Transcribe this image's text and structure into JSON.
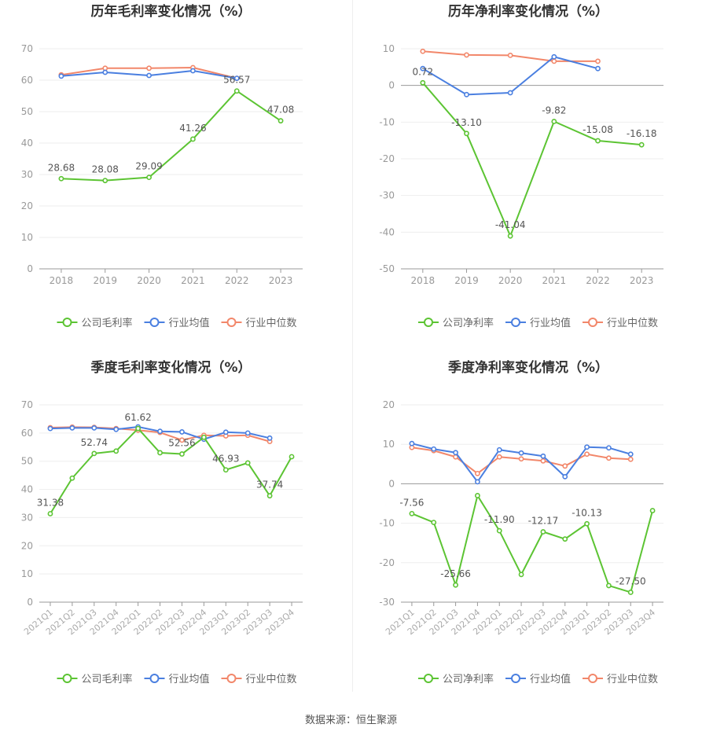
{
  "colors": {
    "company": "#5cc433",
    "avg": "#4a7fe0",
    "median": "#f2876a",
    "grid": "#eeeeee",
    "axis": "#999999",
    "text": "#666666",
    "title": "#333333"
  },
  "footer": "数据来源：恒生聚源",
  "chart_data": [
    {
      "type": "line",
      "title": "历年毛利率变化情况（%）",
      "categories": [
        "2018",
        "2019",
        "2020",
        "2021",
        "2022",
        "2023"
      ],
      "ylim": [
        0,
        70
      ],
      "yticks": [
        0,
        10,
        20,
        30,
        40,
        50,
        60,
        70
      ],
      "series": [
        {
          "name": "公司毛利率",
          "role": "company",
          "values": [
            28.68,
            28.08,
            29.09,
            41.26,
            56.57,
            47.08
          ],
          "labels": [
            "28.68",
            "28.08",
            "29.09",
            "41.26",
            "56.57",
            "47.08"
          ]
        },
        {
          "name": "行业均值",
          "role": "avg",
          "values": [
            61.3,
            62.5,
            61.5,
            63.0,
            60.6,
            null
          ]
        },
        {
          "name": "行业中位数",
          "role": "median",
          "values": [
            61.7,
            63.8,
            63.8,
            64.0,
            60.6,
            null
          ]
        }
      ]
    },
    {
      "type": "line",
      "title": "历年净利率变化情况（%）",
      "categories": [
        "2018",
        "2019",
        "2020",
        "2021",
        "2022",
        "2023"
      ],
      "ylim": [
        -50,
        10
      ],
      "yticks": [
        -50,
        -40,
        -30,
        -20,
        -10,
        0,
        10
      ],
      "series": [
        {
          "name": "公司净利率",
          "role": "company",
          "values": [
            0.72,
            -13.1,
            -41.04,
            -9.82,
            -15.08,
            -16.18
          ],
          "labels": [
            "0.72",
            "-13.10",
            "-41.04",
            "-9.82",
            "-15.08",
            "-16.18"
          ]
        },
        {
          "name": "行业均值",
          "role": "avg",
          "values": [
            4.6,
            -2.5,
            -2.0,
            7.8,
            4.6,
            null
          ]
        },
        {
          "name": "行业中位数",
          "role": "median",
          "values": [
            9.3,
            8.3,
            8.2,
            6.6,
            6.6,
            null
          ]
        }
      ]
    },
    {
      "type": "line",
      "title": "季度毛利率变化情况（%）",
      "categories": [
        "2021Q1",
        "2021Q2",
        "2021Q3",
        "2021Q4",
        "2022Q1",
        "2022Q2",
        "2022Q3",
        "2022Q4",
        "2023Q1",
        "2023Q2",
        "2023Q3",
        "2023Q4"
      ],
      "ylim": [
        0,
        70
      ],
      "yticks": [
        0,
        10,
        20,
        30,
        40,
        50,
        60,
        70
      ],
      "series": [
        {
          "name": "公司毛利率",
          "role": "company",
          "values": [
            31.38,
            44.0,
            52.74,
            53.6,
            61.62,
            53.0,
            52.56,
            58.5,
            46.93,
            49.4,
            37.74,
            51.6
          ],
          "labels": [
            "31.38",
            "",
            "52.74",
            "",
            "61.62",
            "",
            "52.56",
            "",
            "46.93",
            "",
            "37.74",
            ""
          ]
        },
        {
          "name": "行业均值",
          "role": "avg",
          "values": [
            61.6,
            61.8,
            61.8,
            61.3,
            62.2,
            60.6,
            60.4,
            57.8,
            60.3,
            60.0,
            58.2,
            null
          ]
        },
        {
          "name": "行业中位数",
          "role": "median",
          "values": [
            61.9,
            62.1,
            62.0,
            61.6,
            61.0,
            60.2,
            57.5,
            59.2,
            59.0,
            59.2,
            57.0,
            null
          ]
        }
      ]
    },
    {
      "type": "line",
      "title": "季度净利率变化情况（%）",
      "categories": [
        "2021Q1",
        "2021Q2",
        "2021Q3",
        "2021Q4",
        "2022Q1",
        "2022Q2",
        "2022Q3",
        "2022Q4",
        "2023Q1",
        "2023Q2",
        "2023Q3",
        "2023Q4"
      ],
      "ylim": [
        -30,
        20
      ],
      "yticks": [
        -30,
        -20,
        -10,
        0,
        10,
        20
      ],
      "series": [
        {
          "name": "公司净利率",
          "role": "company",
          "values": [
            -7.56,
            -9.8,
            -25.66,
            -3.0,
            -11.9,
            -23.0,
            -12.17,
            -14.0,
            -10.13,
            -25.8,
            -27.5,
            -6.8
          ],
          "labels": [
            "-7.56",
            "",
            "-25.66",
            "",
            "-11.90",
            "",
            "-12.17",
            "",
            "-10.13",
            "",
            "-27.50",
            ""
          ]
        },
        {
          "name": "行业均值",
          "role": "avg",
          "values": [
            10.2,
            8.8,
            7.9,
            0.5,
            8.6,
            7.8,
            7.0,
            1.8,
            9.3,
            9.1,
            7.5,
            null
          ]
        },
        {
          "name": "行业中位数",
          "role": "median",
          "values": [
            9.2,
            8.4,
            6.8,
            2.6,
            6.8,
            6.3,
            5.8,
            4.5,
            7.5,
            6.5,
            6.2,
            null
          ]
        }
      ]
    }
  ]
}
